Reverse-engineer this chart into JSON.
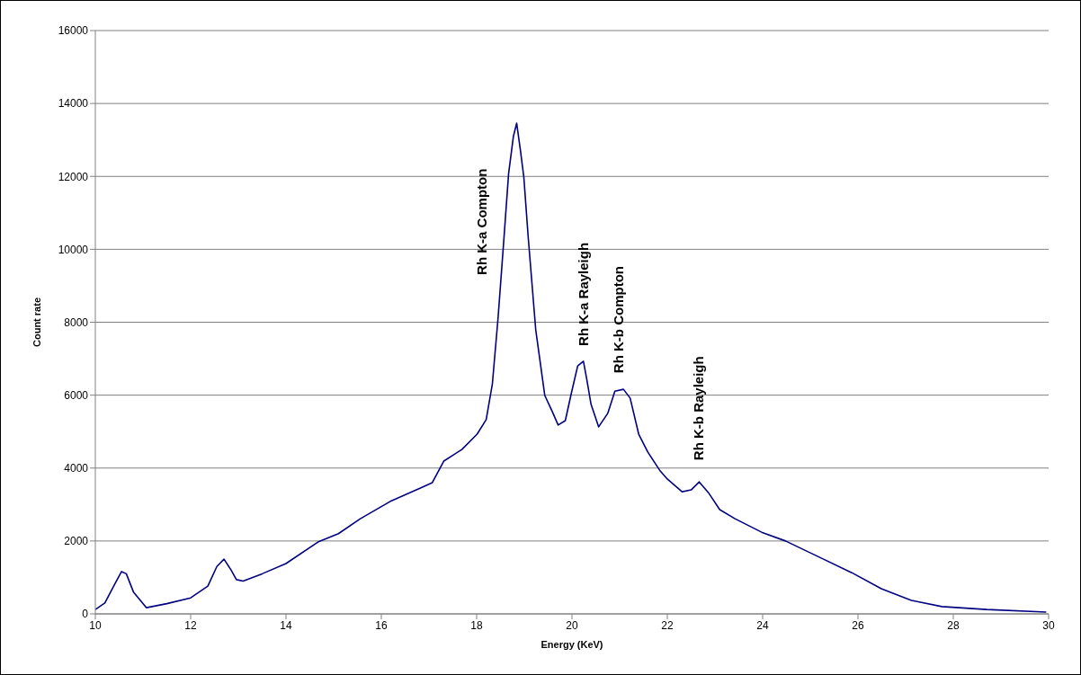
{
  "chart_data": {
    "type": "line",
    "xlabel": "Energy (KeV)",
    "ylabel": "Count rate",
    "x": [
      10.0,
      10.2,
      10.4,
      10.55,
      10.65,
      10.8,
      11.07,
      11.5,
      12.0,
      12.36,
      12.55,
      12.7,
      12.85,
      12.96,
      13.1,
      13.5,
      14.0,
      14.67,
      15.1,
      15.56,
      16.18,
      16.82,
      17.07,
      17.31,
      17.69,
      18.01,
      18.2,
      18.33,
      18.45,
      18.58,
      18.67,
      18.77,
      18.84,
      18.92,
      18.99,
      19.08,
      19.24,
      19.43,
      19.58,
      19.71,
      19.86,
      19.99,
      20.12,
      20.24,
      20.31,
      20.4,
      20.56,
      20.75,
      20.9,
      21.08,
      21.22,
      21.4,
      21.59,
      21.84,
      22.0,
      22.31,
      22.5,
      22.67,
      22.86,
      23.1,
      23.42,
      23.98,
      24.48,
      25.12,
      25.87,
      26.49,
      27.12,
      27.76,
      28.7,
      29.95
    ],
    "series": [
      {
        "color": "#000080",
        "values": [
          120,
          300,
          800,
          1160,
          1100,
          600,
          170,
          280,
          440,
          760,
          1300,
          1500,
          1200,
          940,
          900,
          1100,
          1380,
          1970,
          2200,
          2610,
          3080,
          3450,
          3600,
          4190,
          4510,
          4930,
          5330,
          6310,
          8130,
          10430,
          12070,
          13090,
          13460,
          12700,
          11980,
          10360,
          7790,
          5990,
          5570,
          5180,
          5300,
          6070,
          6800,
          6930,
          6440,
          5750,
          5130,
          5500,
          6110,
          6160,
          5920,
          4930,
          4440,
          3940,
          3700,
          3350,
          3400,
          3620,
          3330,
          2860,
          2610,
          2240,
          2000,
          1600,
          1130,
          690,
          370,
          200,
          120,
          50
        ]
      }
    ],
    "annotations": [
      {
        "text": "Rh K-a Compton",
        "x": 18.58,
        "y": 10430
      },
      {
        "text": "Rh K-a Rayleigh",
        "x": 20.24,
        "y": 6930
      },
      {
        "text": "Rh K-b Compton",
        "x": 21.08,
        "y": 6160
      },
      {
        "text": "Rh K-b Rayleigh",
        "x": 22.67,
        "y": 3620
      }
    ],
    "xlim": [
      10,
      30
    ],
    "xticks": [
      10,
      12,
      14,
      16,
      18,
      20,
      22,
      24,
      26,
      28,
      30
    ],
    "ylim": [
      0,
      16000
    ],
    "yticks": [
      0,
      2000,
      4000,
      6000,
      8000,
      10000,
      12000,
      14000,
      16000
    ],
    "grid": "y",
    "legend": false,
    "marker": "none",
    "line_style": "solid"
  }
}
